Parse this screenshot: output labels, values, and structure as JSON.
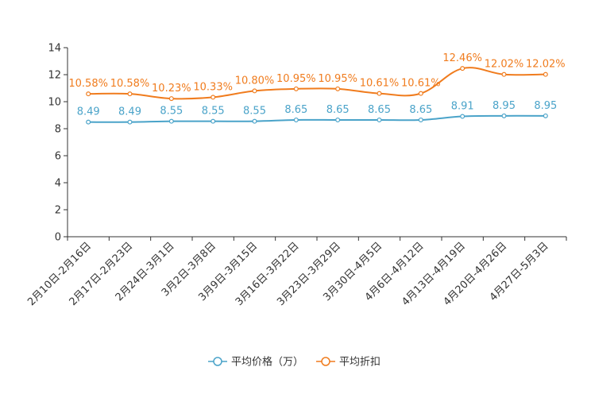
{
  "chart_data": {
    "type": "line",
    "title": "",
    "xlabel": "",
    "ylabel": "",
    "ylim": [
      0,
      14
    ],
    "yticks": [
      0,
      2,
      4,
      6,
      8,
      10,
      12,
      14
    ],
    "grid": false,
    "legend_position": "bottom-center",
    "categories": [
      "2月10日-2月16日",
      "2月17日-2月23日",
      "2月24日-3月1日",
      "3月2日-3月8日",
      "3月9日-3月15日",
      "3月16日-3月22日",
      "3月23日-3月29日",
      "3月30日-4月5日",
      "4月6日-4月12日",
      "4月13日-4月19日",
      "4月20日-4月26日",
      "4月27日-5月3日"
    ],
    "series": [
      {
        "name": "平均价格（万）",
        "color": "#4aa3c9",
        "values": [
          8.49,
          8.49,
          8.55,
          8.55,
          8.55,
          8.65,
          8.65,
          8.65,
          8.65,
          8.91,
          8.95,
          8.95
        ],
        "labels": [
          "8.49",
          "8.49",
          "8.55",
          "8.55",
          "8.55",
          "8.65",
          "8.65",
          "8.65",
          "8.65",
          "8.91",
          "8.95",
          "8.95"
        ]
      },
      {
        "name": "平均折扣",
        "color": "#f07c1e",
        "values": [
          10.58,
          10.58,
          10.23,
          10.33,
          10.8,
          10.95,
          10.95,
          10.61,
          10.61,
          12.46,
          12.02,
          12.02
        ],
        "labels": [
          "10.58%",
          "10.58%",
          "10.23%",
          "10.33%",
          "10.80%",
          "10.95%",
          "10.95%",
          "10.61%",
          "10.61%",
          "12.46%",
          "12.02%",
          "12.02%"
        ]
      }
    ]
  }
}
